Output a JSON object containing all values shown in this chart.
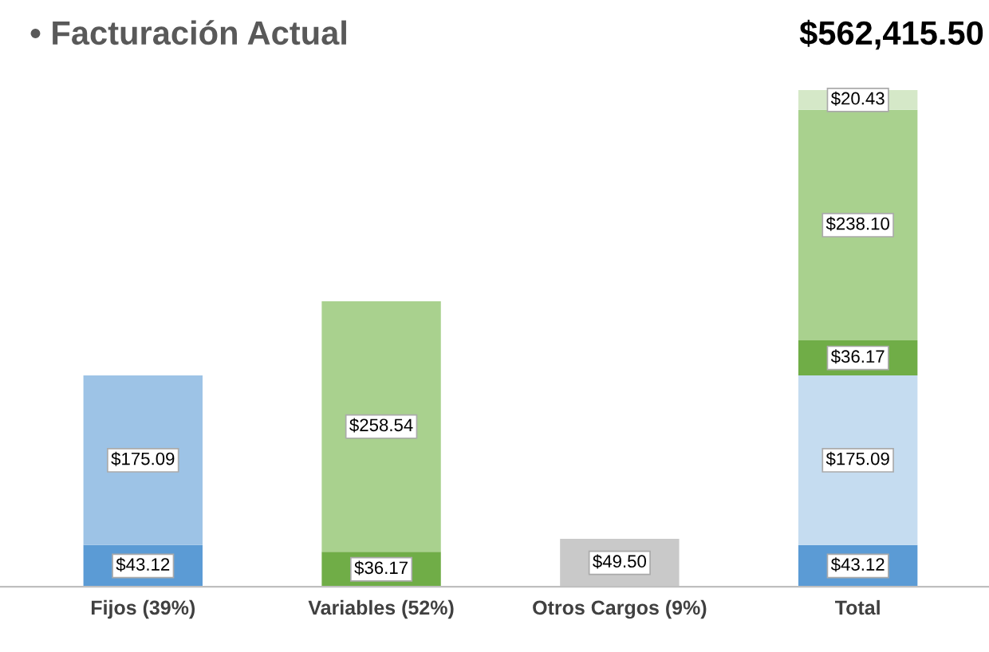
{
  "chart_data": {
    "type": "bar",
    "stacked": true,
    "title": "• Facturación Actual",
    "categories": [
      "Fijos (39%)",
      "Variables (52%)",
      "Otros Cargos (9%)",
      "Total"
    ],
    "annotations": [
      "$562,415.50"
    ],
    "series": [
      {
        "color": "#5b9bd5",
        "values": [
          43.12,
          null,
          null,
          43.12
        ],
        "value_labels": [
          "$43.12",
          null,
          null,
          "$43.12"
        ]
      },
      {
        "color": "#9dc3e6",
        "values": [
          175.09,
          null,
          null,
          null
        ],
        "value_labels": [
          "$175.09",
          null,
          null,
          null
        ]
      },
      {
        "color": "#c5dcf0",
        "values": [
          null,
          null,
          null,
          175.09
        ],
        "value_labels": [
          null,
          null,
          null,
          "$175.09"
        ]
      },
      {
        "color": "#70ad47",
        "values": [
          null,
          36.17,
          null,
          36.17
        ],
        "value_labels": [
          null,
          "$36.17",
          null,
          "$36.17"
        ]
      },
      {
        "color": "#a9d18e",
        "values": [
          null,
          258.54,
          null,
          238.1
        ],
        "value_labels": [
          null,
          "$258.54",
          null,
          "$238.10"
        ]
      },
      {
        "color": "#d5e8c8",
        "values": [
          null,
          null,
          null,
          20.43
        ],
        "value_labels": [
          null,
          null,
          null,
          "$20.43"
        ]
      },
      {
        "color": "#c9c9c9",
        "values": [
          null,
          null,
          49.5,
          null
        ],
        "value_labels": [
          null,
          null,
          "$49.50",
          null
        ]
      }
    ],
    "grid": false,
    "legend": false
  }
}
